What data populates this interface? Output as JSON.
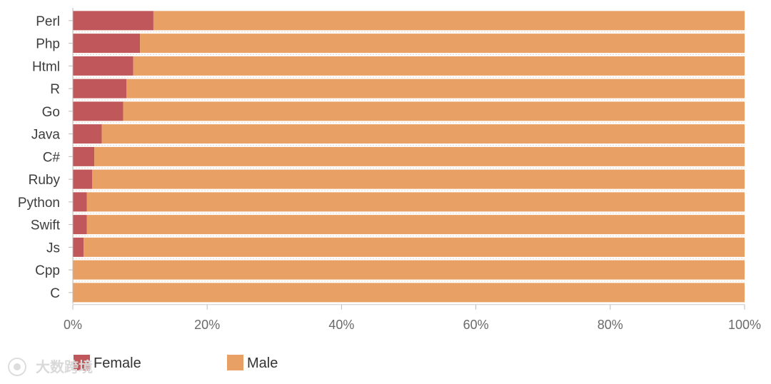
{
  "chart_data": {
    "type": "bar",
    "orientation": "horizontal",
    "stacked": true,
    "percent": true,
    "categories": [
      "Perl",
      "Php",
      "Html",
      "R",
      "Go",
      "Java",
      "C#",
      "Ruby",
      "Python",
      "Swift",
      "Js",
      "Cpp",
      "C"
    ],
    "series": [
      {
        "name": "Female",
        "color": "#c0575a",
        "values": [
          12.0,
          10.0,
          9.0,
          8.0,
          7.5,
          4.3,
          3.2,
          2.9,
          2.1,
          2.1,
          1.6,
          0,
          0
        ]
      },
      {
        "name": "Male",
        "color": "#e9a064",
        "values": [
          88.0,
          90.0,
          91.0,
          92.0,
          92.5,
          95.7,
          96.8,
          97.1,
          97.9,
          97.9,
          98.4,
          100,
          100
        ]
      }
    ],
    "x_ticks": [
      "0%",
      "20%",
      "40%",
      "60%",
      "80%",
      "100%"
    ],
    "xlim": [
      0,
      100
    ],
    "title": "",
    "xlabel": "",
    "ylabel": "",
    "grid": false,
    "legend": {
      "position": "bottom-left",
      "items": [
        "Female",
        "Male"
      ]
    }
  },
  "watermark": {
    "text": "大数跨境"
  }
}
